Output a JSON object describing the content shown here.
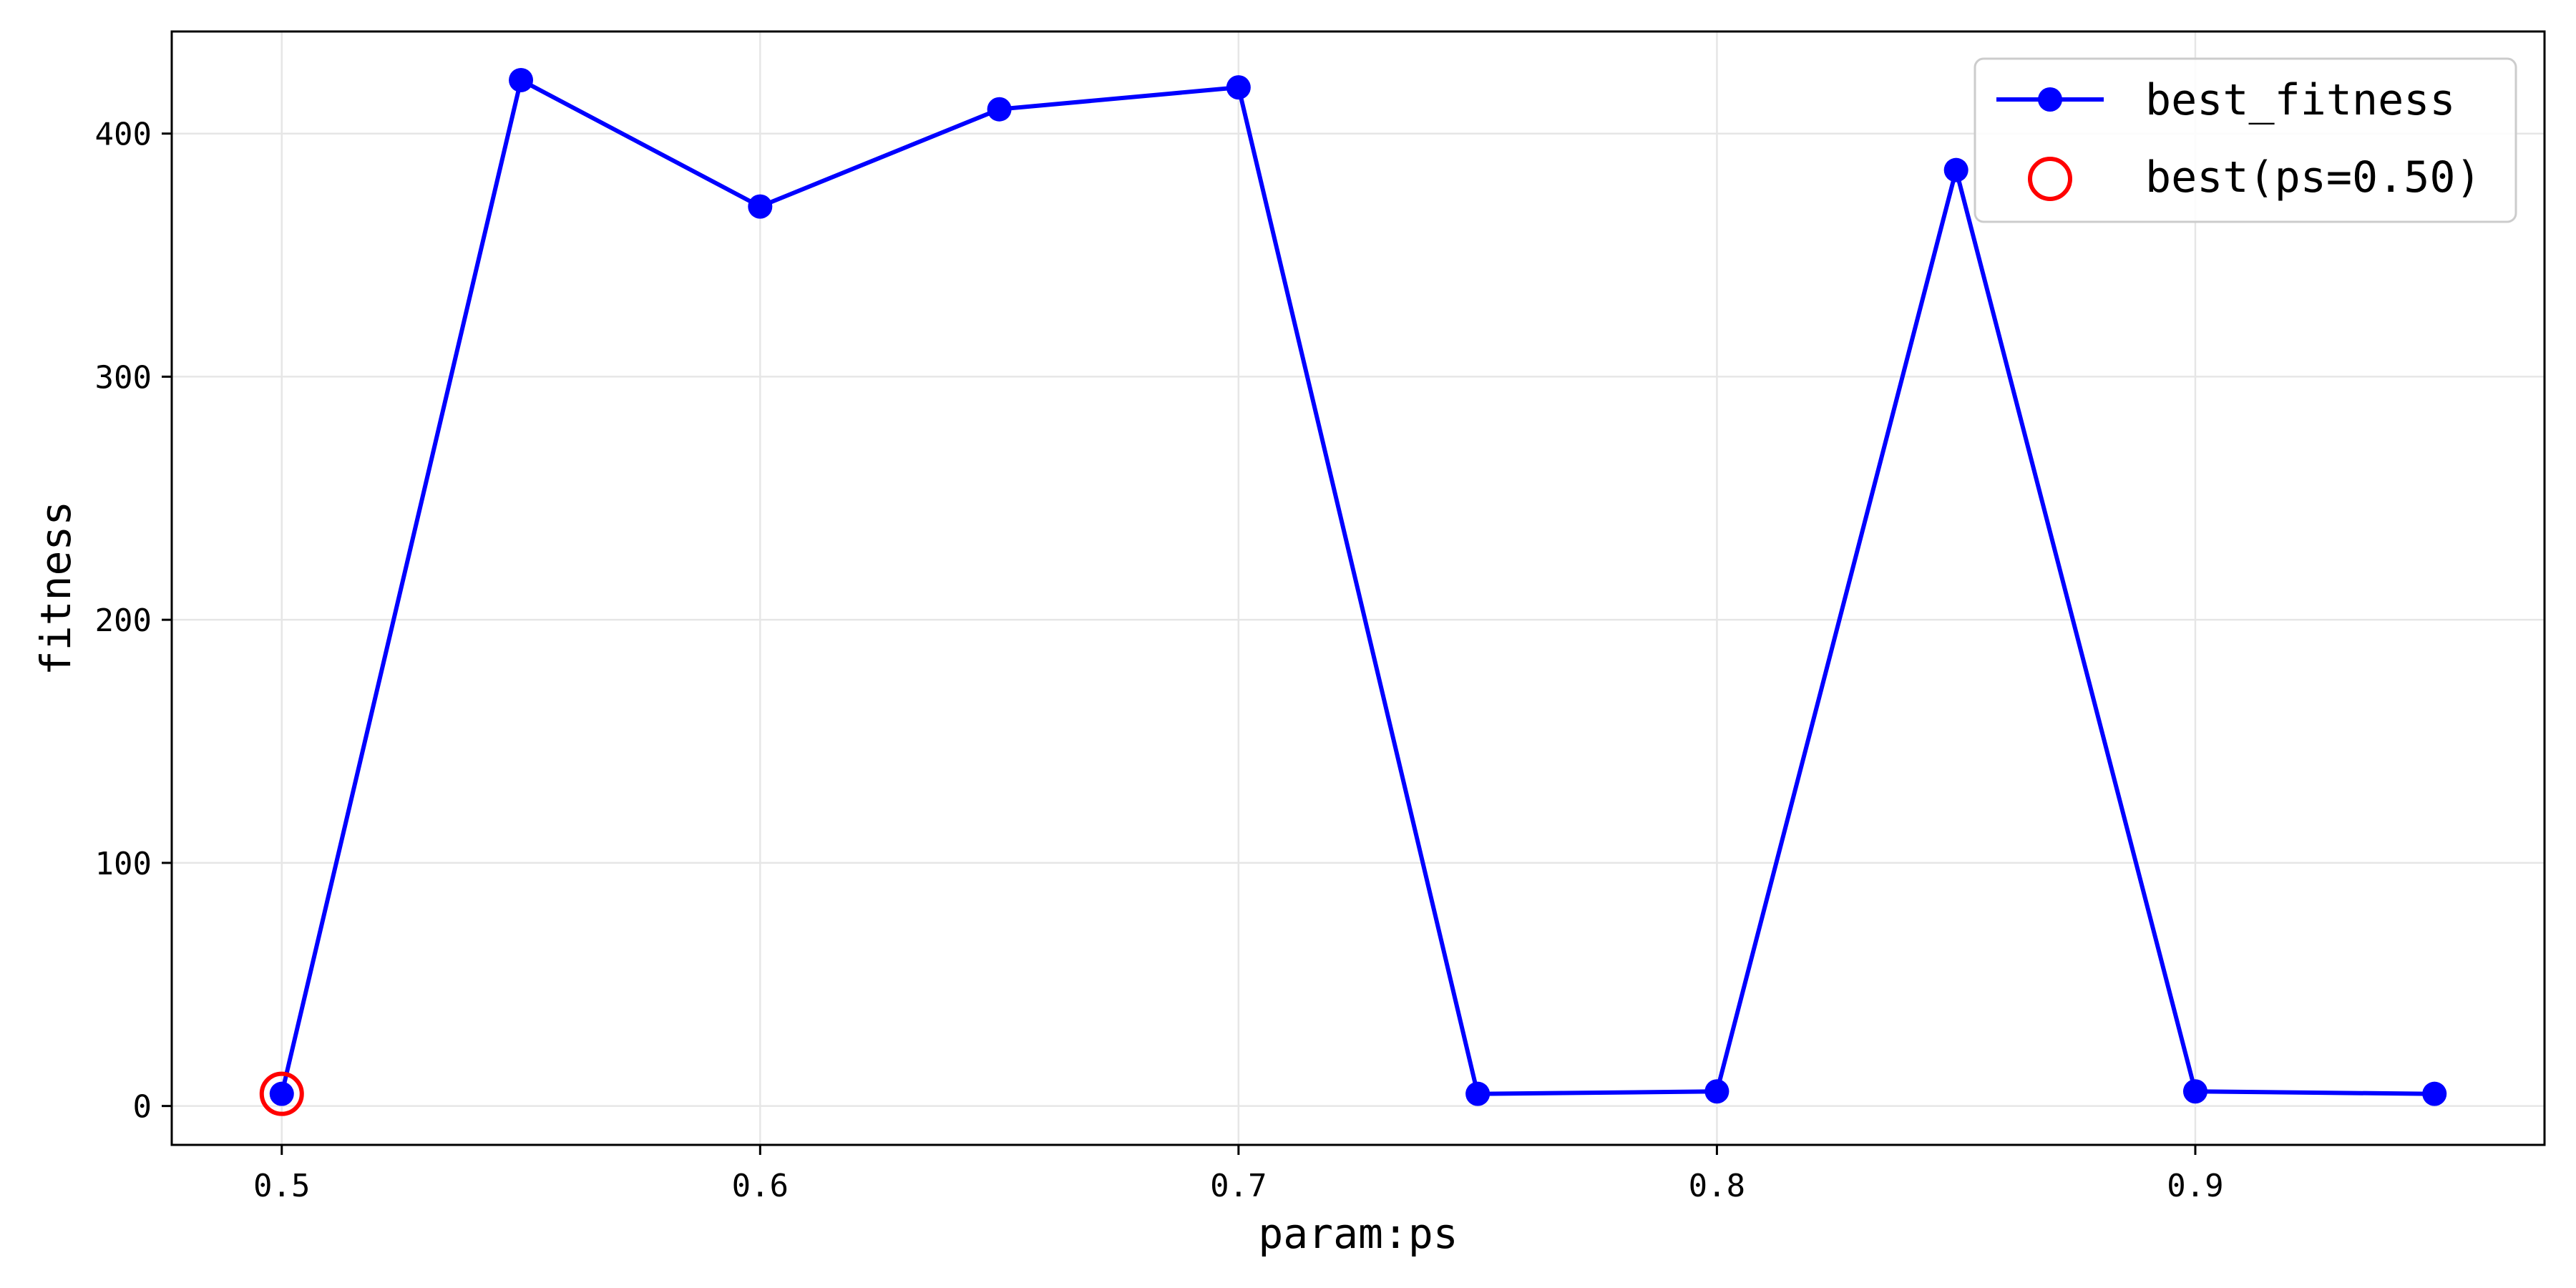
{
  "chart_data": {
    "type": "line",
    "xlabel": "param:ps",
    "ylabel": "fitness",
    "xlim": [
      0.477,
      0.973
    ],
    "ylim": [
      -16,
      442
    ],
    "xticks": [
      0.5,
      0.6,
      0.7,
      0.8,
      0.9
    ],
    "xtick_labels": [
      "0.5",
      "0.6",
      "0.7",
      "0.8",
      "0.9"
    ],
    "yticks": [
      0,
      100,
      200,
      300,
      400
    ],
    "ytick_labels": [
      "0",
      "100",
      "200",
      "300",
      "400"
    ],
    "grid": true,
    "legend_position": "top-right",
    "series": [
      {
        "name": "best_fitness",
        "color": "#0000ff",
        "marker": "circle",
        "x": [
          0.5,
          0.55,
          0.6,
          0.65,
          0.7,
          0.75,
          0.8,
          0.85,
          0.9,
          0.95
        ],
        "y": [
          5,
          422,
          370,
          410,
          419,
          5,
          6,
          385,
          6,
          5
        ]
      }
    ],
    "highlight": {
      "name": "best(ps=0.50)",
      "color": "#ff0000",
      "marker": "hollow-circle",
      "x": 0.5,
      "y": 5
    }
  }
}
